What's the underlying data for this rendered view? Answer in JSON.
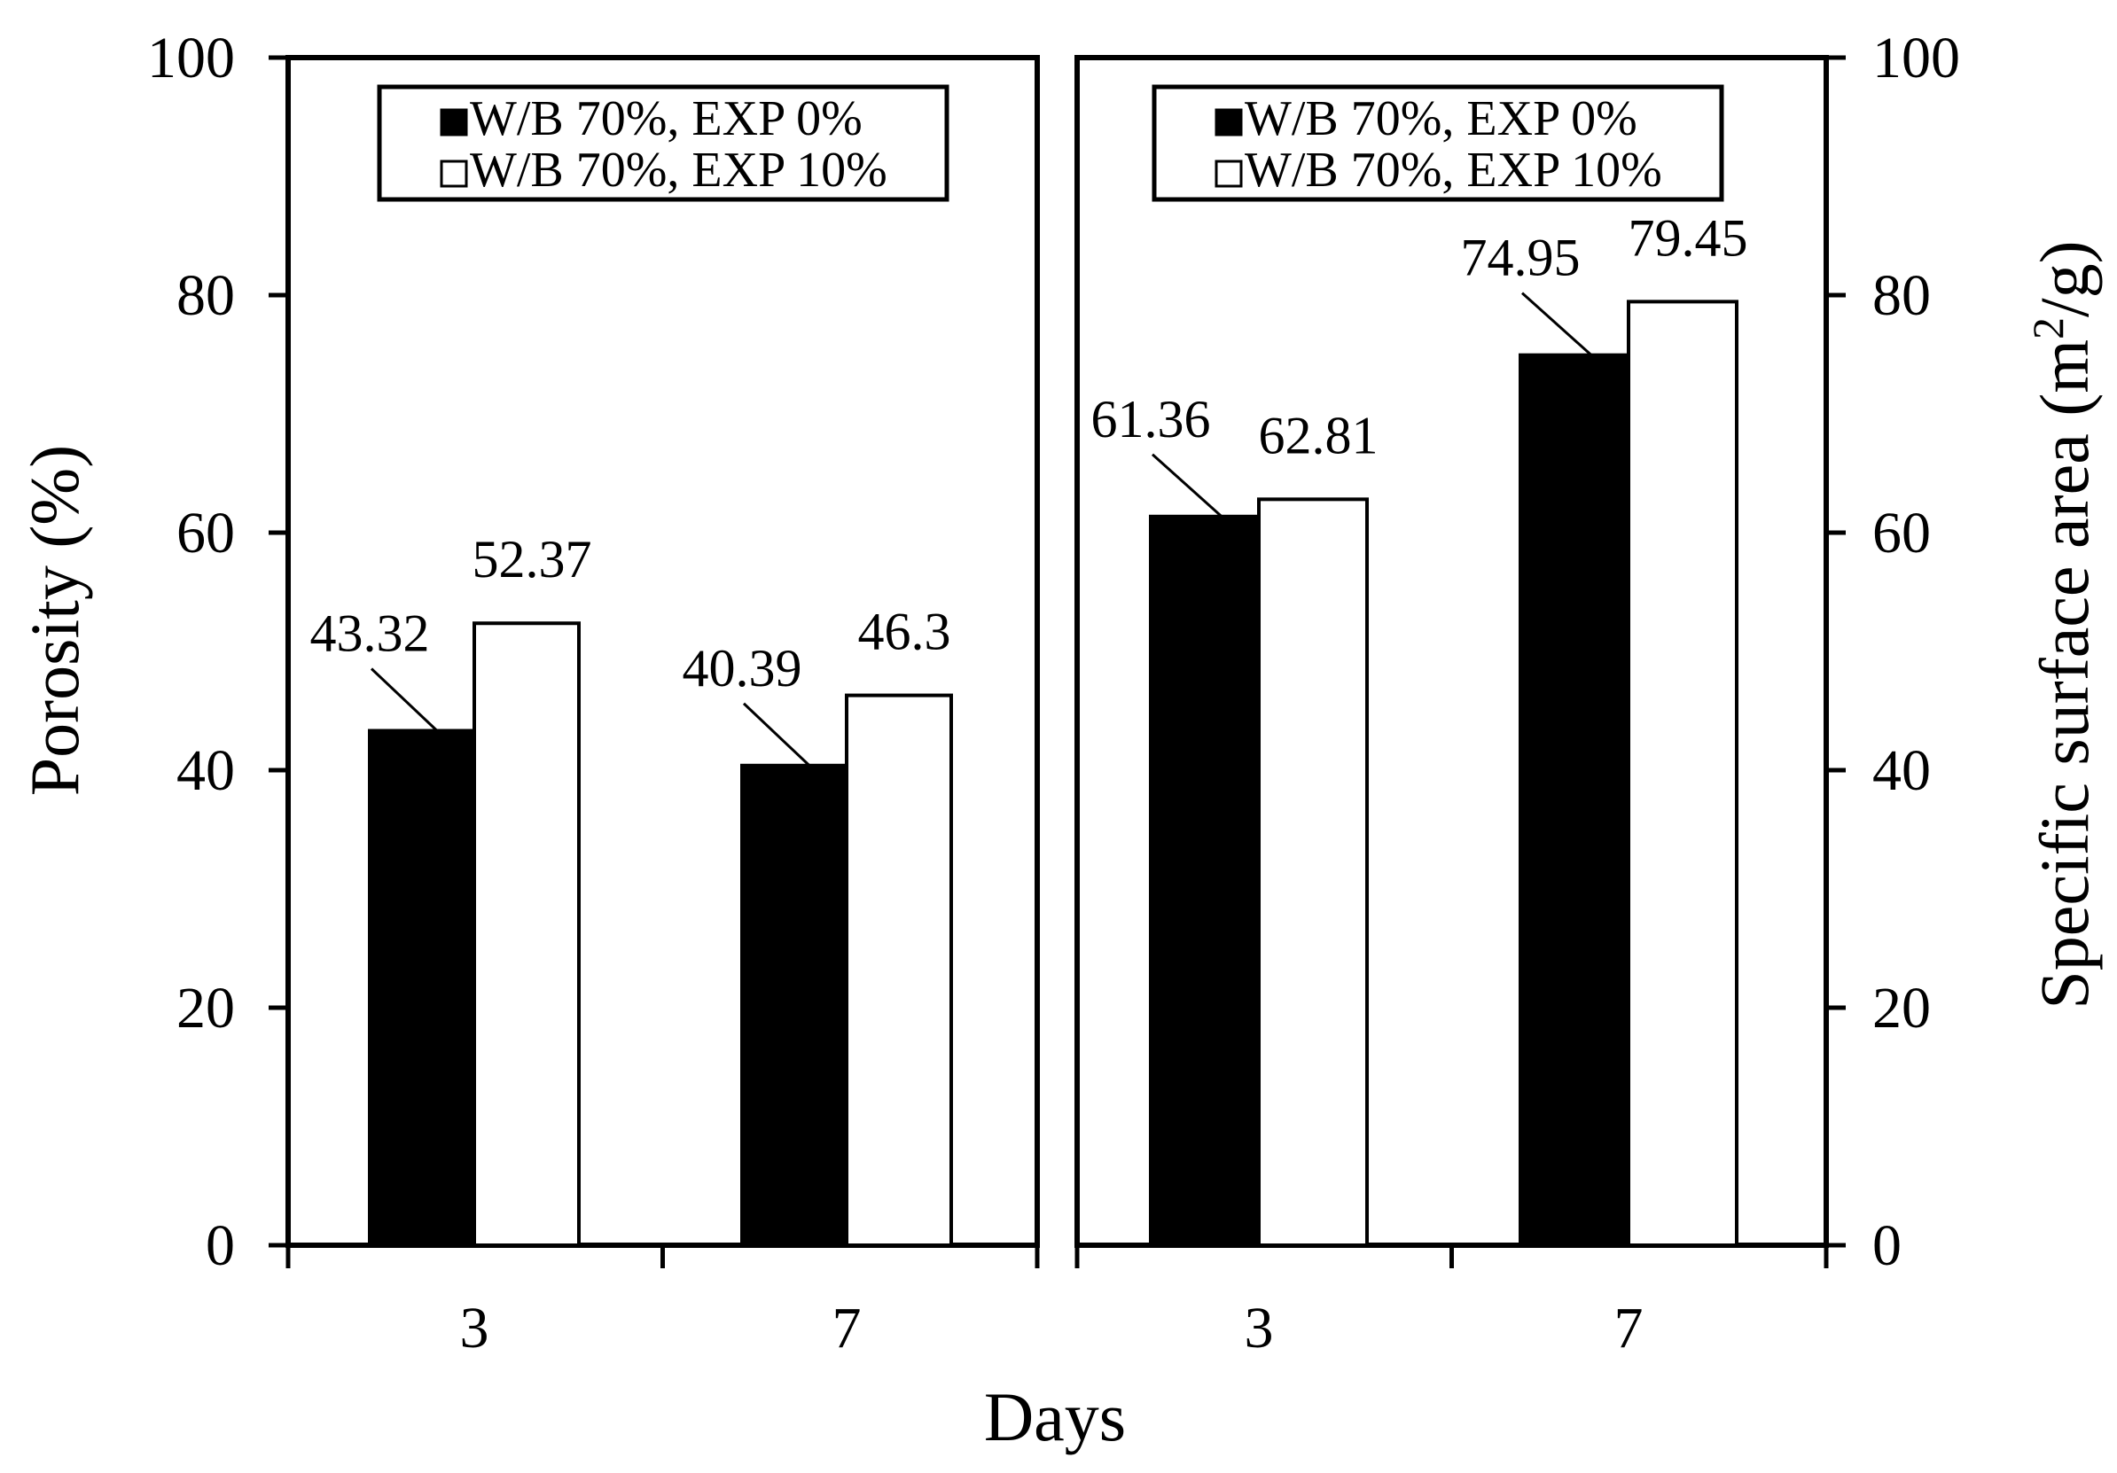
{
  "chart_data": [
    {
      "type": "bar",
      "panel": "left",
      "categories": [
        "3",
        "7"
      ],
      "series": [
        {
          "name": "W/B 70%, EXP 0%",
          "values": [
            43.32,
            40.39
          ],
          "labels": [
            "43.32",
            "40.39"
          ],
          "color": "#000000"
        },
        {
          "name": "W/B 70%, EXP 10%",
          "values": [
            52.37,
            46.3
          ],
          "labels": [
            "52.37",
            "46.3"
          ],
          "color": "#ffffff"
        }
      ],
      "ylabel": "Porosity (%)",
      "ylim": [
        0,
        100
      ],
      "yticks": [
        "0",
        "20",
        "40",
        "60",
        "80",
        "100"
      ],
      "legend": "top-center",
      "grid": false
    },
    {
      "type": "bar",
      "panel": "right",
      "categories": [
        "3",
        "7"
      ],
      "series": [
        {
          "name": "W/B 70%, EXP 0%",
          "values": [
            61.36,
            74.95
          ],
          "labels": [
            "61.36",
            "74.95"
          ],
          "color": "#000000"
        },
        {
          "name": "W/B 70%, EXP 10%",
          "values": [
            62.81,
            79.45
          ],
          "labels": [
            "62.81",
            "79.45"
          ],
          "color": "#ffffff"
        }
      ],
      "ylabel": "Specific surface area (m²/g)",
      "ylabel_parts": {
        "main": "Specific surface area (m",
        "sup": "2",
        "tail": "/g)"
      },
      "ylim": [
        0,
        100
      ],
      "yticks": [
        "0",
        "20",
        "40",
        "60",
        "80",
        "100"
      ],
      "legend": "top-center",
      "grid": false
    }
  ],
  "xlabel": "Days"
}
